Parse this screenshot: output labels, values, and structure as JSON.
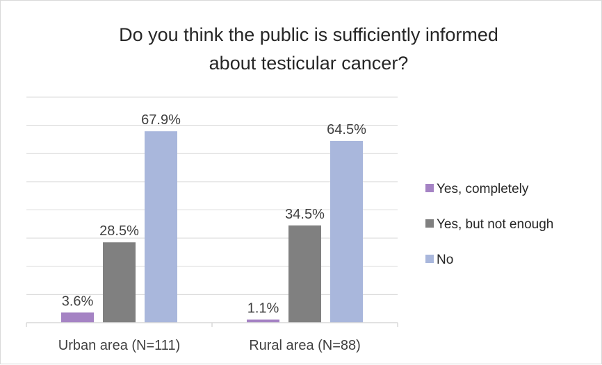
{
  "chart_data": {
    "type": "bar",
    "title_lines": [
      "Do you think the public is sufficiently informed",
      "about testicular cancer?"
    ],
    "categories": [
      "Urban area (N=111)",
      "Rural area (N=88)"
    ],
    "series": [
      {
        "name": "Yes, completely",
        "color": "#a583c4",
        "values": [
          3.6,
          1.1
        ],
        "labels": [
          "3.6%",
          "1.1%"
        ]
      },
      {
        "name": "Yes, but not enough",
        "color": "#808080",
        "values": [
          28.5,
          34.5
        ],
        "labels": [
          "28.5%",
          "34.5%"
        ]
      },
      {
        "name": "No",
        "color": "#a9b7dc",
        "values": [
          67.9,
          64.5
        ],
        "labels": [
          "67.9%",
          "64.5%"
        ]
      }
    ],
    "ylim": [
      0,
      80
    ],
    "grid": true,
    "legend_position": "right"
  }
}
